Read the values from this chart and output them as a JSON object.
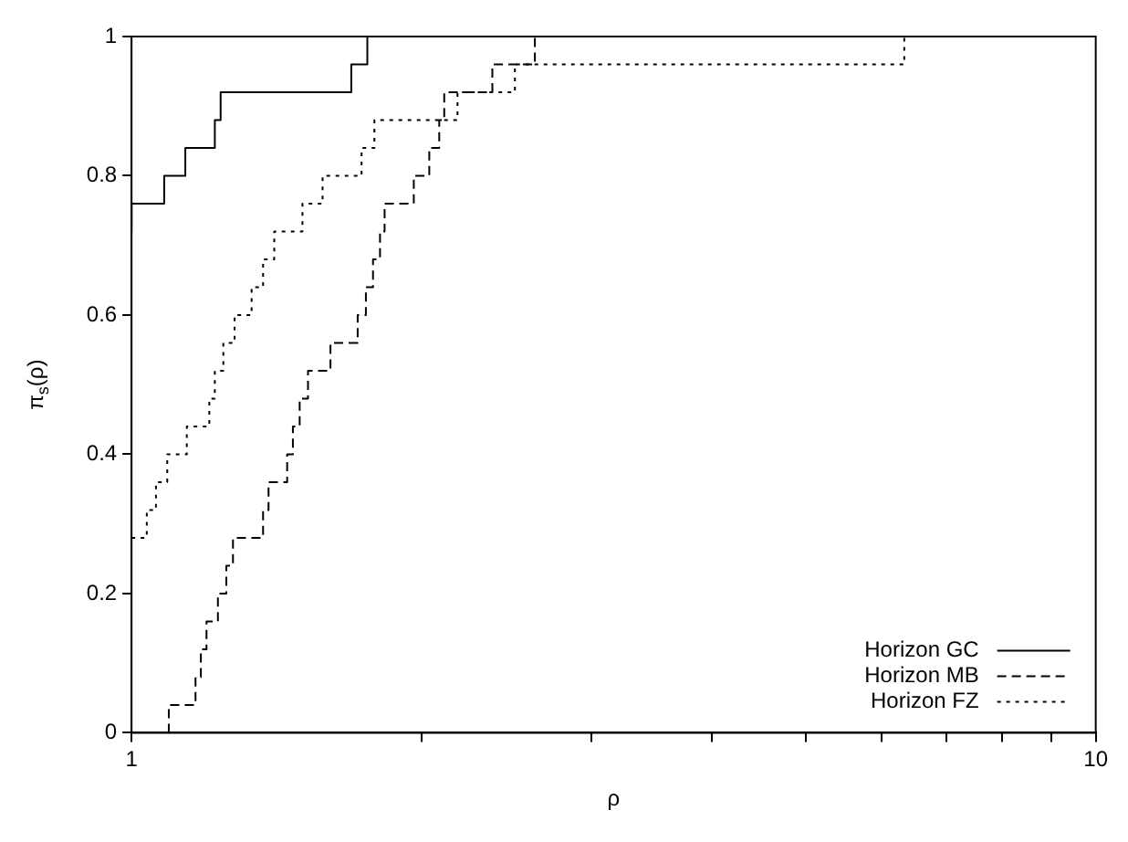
{
  "chart_data": {
    "type": "step",
    "xlabel": "ρ",
    "ylabel": "π$_{s}$(ρ)",
    "log": "x",
    "xlim": [
      1,
      10
    ],
    "ylim": [
      0,
      1
    ],
    "xticks": [
      1,
      {
        "value": 2,
        "label": null
      },
      {
        "value": 3,
        "label": null
      },
      {
        "value": 4,
        "label": null
      },
      {
        "value": 5,
        "label": null
      },
      {
        "value": 6,
        "label": null
      },
      {
        "value": 7,
        "label": null
      },
      {
        "value": 8,
        "label": null
      },
      {
        "value": 9,
        "label": null
      },
      10
    ],
    "yticks": [
      0,
      0.2,
      0.4,
      0.6,
      0.8,
      1
    ],
    "grid": false,
    "legend": "bottom right",
    "marker": "none",
    "series": [
      {
        "name": "Horizon GC",
        "color": "#000000",
        "line_style": "solid",
        "x": [
          1,
          1,
          1.081,
          1.137,
          1.22,
          1.237,
          1.69,
          1.756,
          10
        ],
        "values": [
          0.72,
          0.76,
          0.8,
          0.84,
          0.88,
          0.92,
          0.96,
          1,
          1
        ]
      },
      {
        "name": "Horizon MB",
        "color": "#000000",
        "line_style": "dashed",
        "x": [
          1.093,
          1.093,
          1.165,
          1.18,
          1.196,
          1.229,
          1.254,
          1.274,
          1.369,
          1.387,
          1.45,
          1.47,
          1.494,
          1.524,
          1.608,
          1.716,
          1.75,
          1.78,
          1.81,
          1.83,
          1.962,
          2.036,
          2.085,
          2.11,
          2.367,
          2.62,
          10
        ],
        "values": [
          0,
          0.04,
          0.08,
          0.12,
          0.16,
          0.2,
          0.24,
          0.28,
          0.32,
          0.36,
          0.4,
          0.44,
          0.48,
          0.52,
          0.56,
          0.6,
          0.64,
          0.68,
          0.72,
          0.76,
          0.8,
          0.84,
          0.88,
          0.92,
          0.96,
          1,
          1
        ]
      },
      {
        "name": "Horizon FZ",
        "color": "#000000",
        "line_style": "dotted",
        "x": [
          1,
          1.037,
          1.06,
          1.089,
          1.141,
          1.204,
          1.22,
          1.245,
          1.279,
          1.332,
          1.369,
          1.406,
          1.504,
          1.578,
          1.732,
          1.786,
          2.178,
          2.498,
          6.33,
          10
        ],
        "values": [
          0.28,
          0.32,
          0.36,
          0.4,
          0.44,
          0.48,
          0.52,
          0.56,
          0.6,
          0.64,
          0.68,
          0.72,
          0.76,
          0.8,
          0.84,
          0.88,
          0.92,
          0.96,
          1,
          1
        ]
      }
    ]
  }
}
